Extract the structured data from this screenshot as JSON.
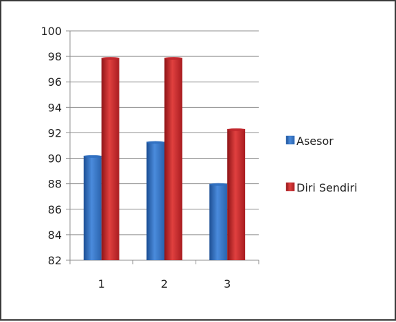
{
  "chart_data": {
    "type": "bar",
    "categories": [
      "1",
      "2",
      "3"
    ],
    "series": [
      {
        "name": "Asesor",
        "values": [
          90.2,
          91.3,
          88.0
        ],
        "color": "#2f6fbf"
      },
      {
        "name": "Diri Sendiri",
        "values": [
          97.9,
          97.9,
          92.3
        ],
        "color": "#c0262b"
      }
    ],
    "ylim": [
      82,
      100
    ],
    "yticks": [
      82,
      84,
      86,
      88,
      90,
      92,
      94,
      96,
      98,
      100
    ],
    "grid": true,
    "legend_position": "right",
    "title": "",
    "xlabel": "",
    "ylabel": ""
  }
}
